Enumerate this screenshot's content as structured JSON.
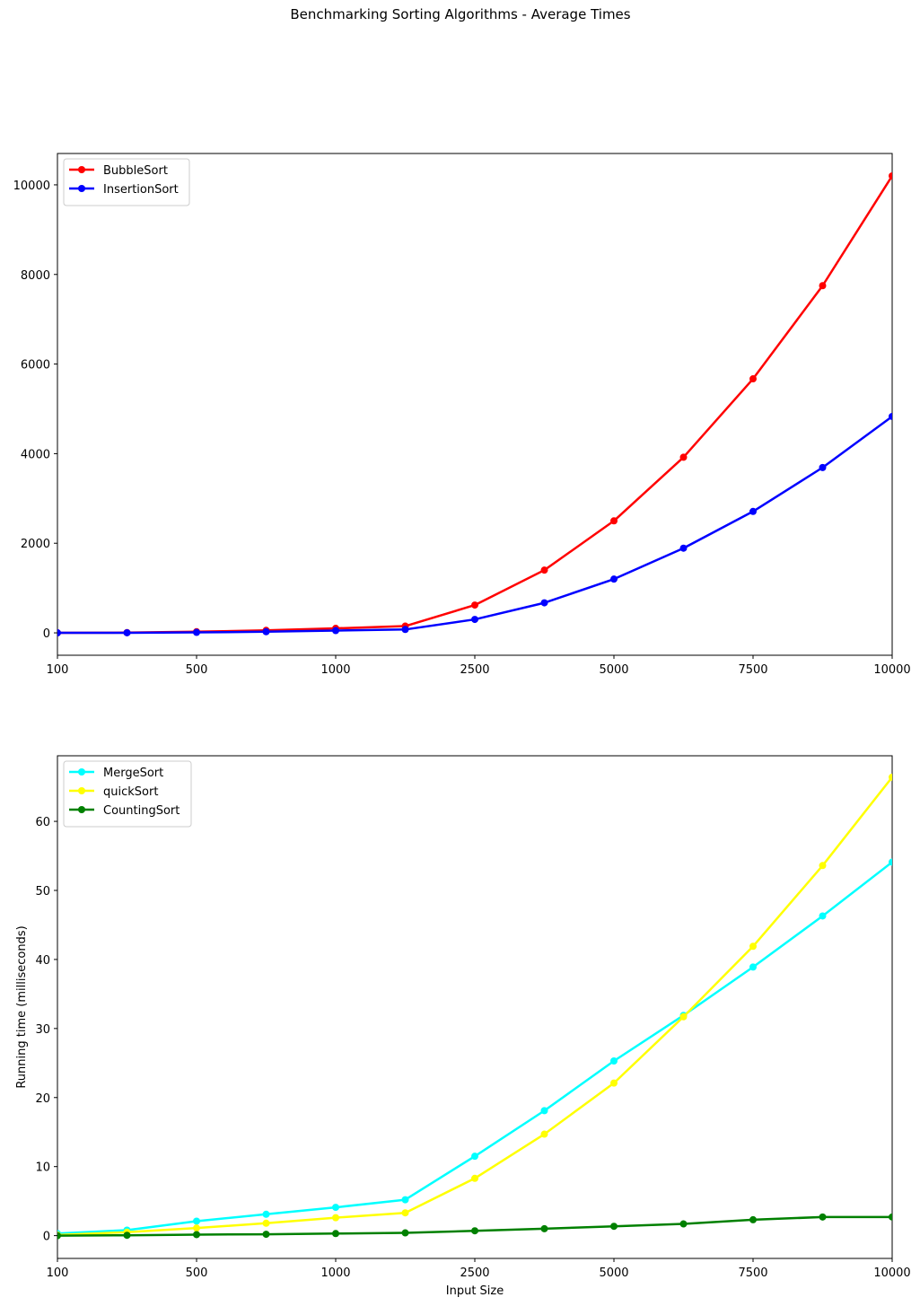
{
  "figure": {
    "suptitle": "Benchmarking Sorting Algorithms - Average Times"
  },
  "chart_data": [
    {
      "type": "line",
      "title": "",
      "xlabel": "",
      "ylabel": "",
      "x_tick_labels": [
        "100",
        "",
        "500",
        "",
        "1000",
        "",
        "2500",
        "",
        "5000",
        "",
        "7500",
        "",
        "10000"
      ],
      "y_ticks": [
        0,
        2000,
        4000,
        6000,
        8000,
        10000
      ],
      "ylim": [
        -500,
        10700
      ],
      "grid": false,
      "legend_position": "top-left",
      "series": [
        {
          "name": "BubbleSort",
          "color": "#ff0000",
          "values": [
            0,
            5,
            25,
            55,
            100,
            150,
            620,
            1400,
            2500,
            3920,
            5670,
            7750,
            10200
          ]
        },
        {
          "name": "InsertionSort",
          "color": "#0000ff",
          "values": [
            0,
            2,
            10,
            25,
            50,
            75,
            300,
            670,
            1200,
            1890,
            2710,
            3690,
            4830
          ]
        }
      ]
    },
    {
      "type": "line",
      "title": "",
      "xlabel": "Input Size",
      "ylabel": "Running time (milliseconds)",
      "x_tick_labels": [
        "100",
        "",
        "500",
        "",
        "1000",
        "",
        "2500",
        "",
        "5000",
        "",
        "7500",
        "",
        "10000"
      ],
      "y_ticks": [
        0,
        10,
        20,
        30,
        40,
        50,
        60
      ],
      "ylim": [
        -3.3,
        69.5
      ],
      "grid": false,
      "legend_position": "top-left",
      "series": [
        {
          "name": "MergeSort",
          "color": "#00ffff",
          "values": [
            0.3,
            0.8,
            2.1,
            3.1,
            4.1,
            5.2,
            11.5,
            18.1,
            25.3,
            31.9,
            38.9,
            46.3,
            54.1
          ]
        },
        {
          "name": "quickSort",
          "color": "#ffff00",
          "values": [
            0.1,
            0.5,
            1.1,
            1.8,
            2.6,
            3.3,
            8.3,
            14.7,
            22.1,
            31.7,
            41.9,
            53.6,
            66.4
          ]
        },
        {
          "name": "CountingSort",
          "color": "#008000",
          "values": [
            0.0,
            0.05,
            0.15,
            0.2,
            0.3,
            0.4,
            0.7,
            1.0,
            1.35,
            1.7,
            2.3,
            2.7,
            2.7
          ]
        }
      ]
    }
  ]
}
